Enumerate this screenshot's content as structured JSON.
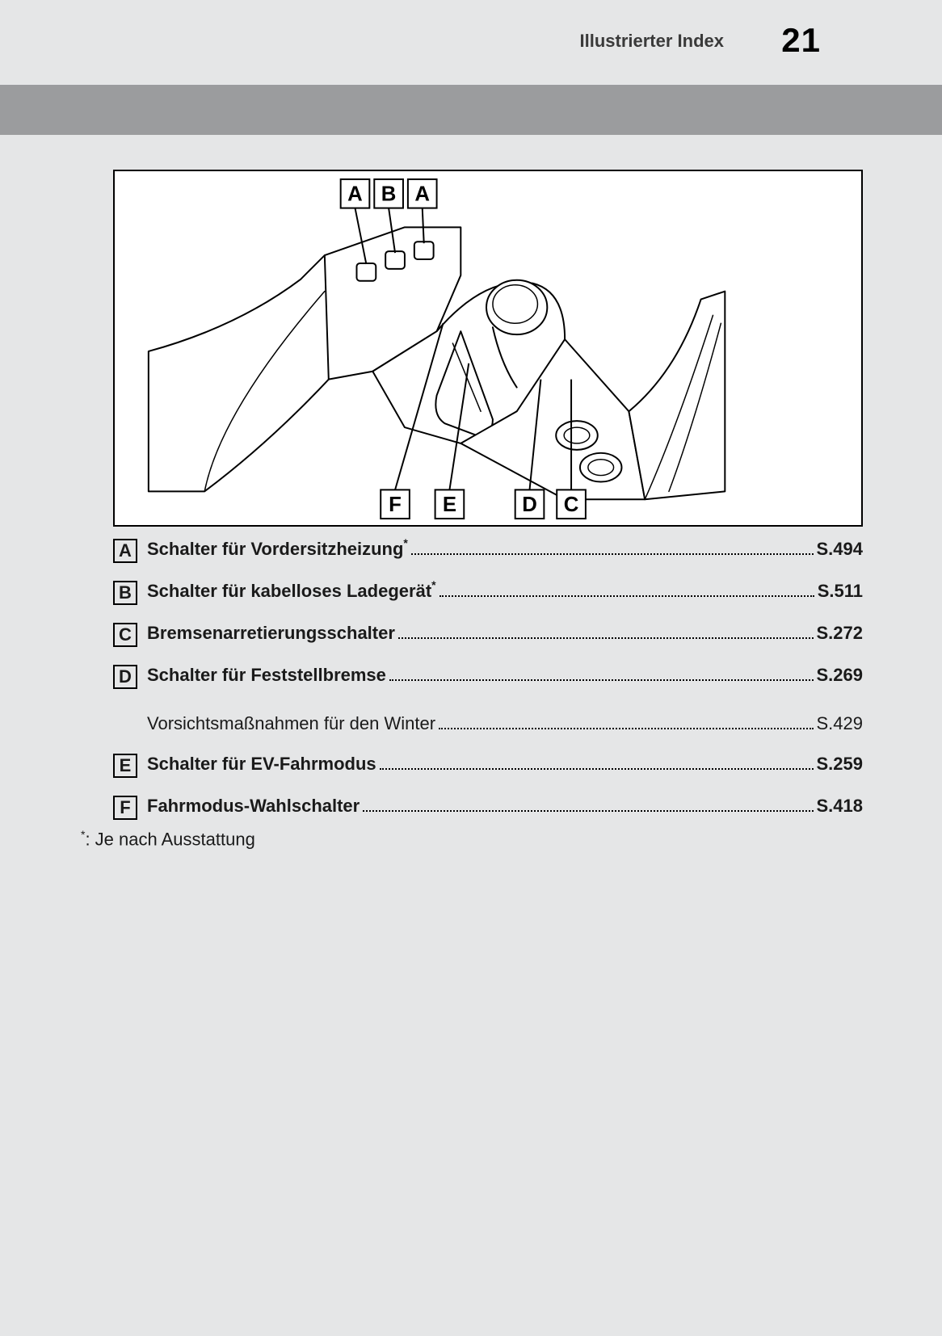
{
  "header": {
    "title": "Illustrierter Index",
    "page_number": "21"
  },
  "figure": {
    "top_callouts": [
      "A",
      "B",
      "A"
    ],
    "bottom_callouts": [
      "F",
      "E",
      "D",
      "C"
    ]
  },
  "index": [
    {
      "letter": "A",
      "label": "Schalter für Vordersitzheizung",
      "sup": "*",
      "page": "S.494",
      "bold": true
    },
    {
      "letter": "B",
      "label": "Schalter für kabelloses Ladegerät",
      "sup": "*",
      "page": "S.511",
      "bold": true
    },
    {
      "letter": "C",
      "label": "Bremsenarretierungsschalter",
      "sup": "",
      "page": "S.272",
      "bold": true
    },
    {
      "letter": "D",
      "label": "Schalter für Feststellbremse",
      "sup": "",
      "page": "S.269",
      "bold": true
    },
    {
      "letter": "",
      "label": "Vorsichtsmaßnahmen für den Winter",
      "sup": "",
      "page": "S.429",
      "bold": false
    },
    {
      "letter": "E",
      "label": "Schalter für EV-Fahrmodus",
      "sup": "",
      "page": "S.259",
      "bold": true
    },
    {
      "letter": "F",
      "label": "Fahrmodus-Wahlschalter",
      "sup": "",
      "page": "S.418",
      "bold": true
    }
  ],
  "footnote": {
    "marker": "*",
    "text": ":  Je nach Ausstattung"
  },
  "style": {
    "page_bg": "#e5e6e7",
    "band_bg": "#9b9c9e",
    "text_color": "#1a1a1a",
    "header_title_fontsize": 22,
    "page_number_fontsize": 42,
    "index_fontsize": 22,
    "callout_fontsize": 26
  }
}
